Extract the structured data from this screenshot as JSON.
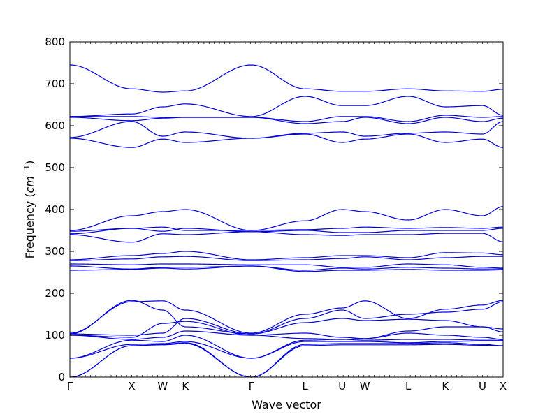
{
  "chart_data": {
    "type": "line",
    "title": "",
    "xlabel": "Wave vector",
    "ylabel": "Frequency",
    "ylabel_unit_base": "cm",
    "ylabel_unit_exp": "−1",
    "ylim": [
      0,
      800
    ],
    "yticks": [
      0,
      100,
      200,
      300,
      400,
      500,
      600,
      700,
      800
    ],
    "xlim": [
      0,
      10.5
    ],
    "q_points": [
      {
        "label": "Γ",
        "x": 0.0
      },
      {
        "label": "X",
        "x": 1.5
      },
      {
        "label": "W",
        "x": 2.25
      },
      {
        "label": "K",
        "x": 2.8
      },
      {
        "label": "Γ",
        "x": 4.4
      },
      {
        "label": "L",
        "x": 5.7
      },
      {
        "label": "U",
        "x": 6.6
      },
      {
        "label": "W",
        "x": 7.15
      },
      {
        "label": "L",
        "x": 8.2
      },
      {
        "label": "K",
        "x": 9.1
      },
      {
        "label": "U",
        "x": 10.0
      },
      {
        "label": "X",
        "x": 10.5
      }
    ],
    "line_color": "#0000dd",
    "series_values_at_q_points": [
      [
        0,
        75,
        77,
        80,
        0,
        75,
        77,
        77,
        77,
        78,
        76,
        75
      ],
      [
        0,
        75,
        78,
        82,
        0,
        78,
        80,
        80,
        80,
        82,
        78,
        75
      ],
      [
        45,
        78,
        80,
        85,
        45,
        85,
        85,
        85,
        82,
        85,
        86,
        86
      ],
      [
        45,
        88,
        85,
        100,
        45,
        88,
        90,
        88,
        90,
        90,
        88,
        88
      ],
      [
        100,
        90,
        95,
        110,
        100,
        92,
        90,
        92,
        105,
        100,
        95,
        90
      ],
      [
        100,
        95,
        128,
        133,
        100,
        105,
        95,
        92,
        110,
        120,
        120,
        115
      ],
      [
        103,
        100,
        105,
        140,
        103,
        130,
        140,
        135,
        138,
        135,
        120,
        108
      ],
      [
        103,
        183,
        160,
        120,
        103,
        140,
        160,
        140,
        150,
        155,
        162,
        180
      ],
      [
        105,
        180,
        182,
        160,
        105,
        150,
        165,
        182,
        140,
        162,
        172,
        183
      ],
      [
        255,
        257,
        260,
        258,
        265,
        252,
        255,
        255,
        257,
        255,
        255,
        256
      ],
      [
        265,
        258,
        262,
        262,
        265,
        255,
        260,
        258,
        262,
        260,
        258,
        258
      ],
      [
        270,
        268,
        270,
        270,
        268,
        268,
        262,
        262,
        270,
        268,
        262,
        260
      ],
      [
        278,
        282,
        287,
        288,
        278,
        280,
        283,
        287,
        280,
        285,
        288,
        288
      ],
      [
        280,
        290,
        295,
        300,
        280,
        285,
        290,
        290,
        285,
        297,
        296,
        292
      ],
      [
        340,
        322,
        342,
        340,
        347,
        340,
        338,
        340,
        340,
        343,
        343,
        323
      ],
      [
        342,
        355,
        348,
        355,
        347,
        350,
        345,
        345,
        350,
        350,
        350,
        355
      ],
      [
        348,
        355,
        358,
        350,
        350,
        352,
        355,
        358,
        355,
        357,
        355,
        358
      ],
      [
        350,
        385,
        395,
        400,
        350,
        373,
        400,
        395,
        375,
        400,
        385,
        407
      ],
      [
        570,
        548,
        568,
        560,
        570,
        580,
        560,
        568,
        580,
        560,
        568,
        548
      ],
      [
        572,
        610,
        575,
        585,
        570,
        582,
        585,
        575,
        582,
        585,
        580,
        610
      ],
      [
        620,
        612,
        618,
        620,
        620,
        605,
        610,
        620,
        605,
        620,
        610,
        618
      ],
      [
        622,
        622,
        620,
        620,
        620,
        610,
        622,
        622,
        610,
        625,
        620,
        622
      ],
      [
        622,
        628,
        645,
        652,
        622,
        670,
        648,
        648,
        670,
        645,
        648,
        625
      ],
      [
        745,
        688,
        680,
        683,
        745,
        688,
        682,
        682,
        688,
        683,
        682,
        687
      ]
    ]
  }
}
